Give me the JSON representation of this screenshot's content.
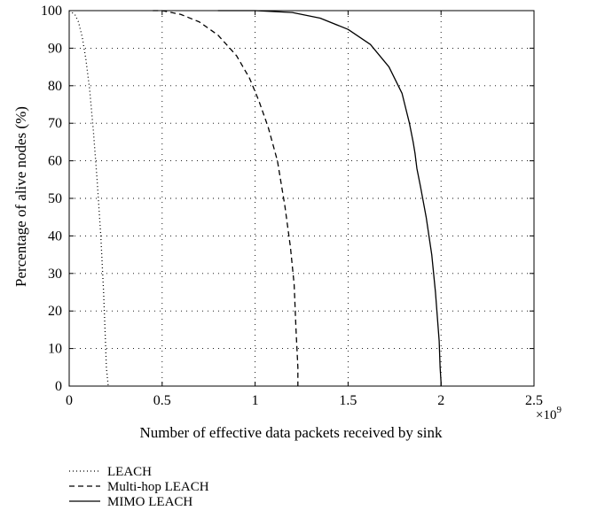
{
  "chart_data": {
    "type": "line",
    "title": "",
    "xlabel": "Number of effective data packets received by sink",
    "ylabel": "Percentage of alive nodes (%)",
    "x_scale_label": "×10",
    "x_scale_exponent": "9",
    "xlim": [
      0,
      2.5
    ],
    "ylim": [
      0,
      100
    ],
    "xticks": [
      0,
      0.5,
      1,
      1.5,
      2,
      2.5
    ],
    "xtick_labels": [
      "0",
      "0.5",
      "1",
      "1.5",
      "2",
      "2.5"
    ],
    "yticks": [
      0,
      10,
      20,
      30,
      40,
      50,
      60,
      70,
      80,
      90,
      100
    ],
    "ytick_labels": [
      "0",
      "10",
      "20",
      "30",
      "40",
      "50",
      "60",
      "70",
      "80",
      "90",
      "100"
    ],
    "grid": true,
    "legend_position": "below-left",
    "series": [
      {
        "name": "LEACH",
        "line_style": "dotted",
        "color": "#000000",
        "x": [
          0.0,
          0.03,
          0.05,
          0.07,
          0.09,
          0.11,
          0.13,
          0.15,
          0.17,
          0.185,
          0.195,
          0.2,
          0.21
        ],
        "y": [
          100,
          99,
          97,
          93,
          87,
          79,
          68,
          55,
          40,
          25,
          12,
          5,
          0
        ]
      },
      {
        "name": "Multi-hop LEACH",
        "line_style": "dashed",
        "color": "#000000",
        "x": [
          0.45,
          0.5,
          0.6,
          0.7,
          0.8,
          0.9,
          0.97,
          1.02,
          1.07,
          1.12,
          1.16,
          1.19,
          1.21,
          1.22,
          1.23,
          1.23
        ],
        "y": [
          100,
          100,
          99,
          97,
          93.5,
          88,
          82,
          76,
          69,
          60,
          48,
          37,
          27,
          15,
          5,
          0
        ]
      },
      {
        "name": "MIMO LEACH",
        "line_style": "solid",
        "color": "#000000",
        "x": [
          0.8,
          1.0,
          1.2,
          1.35,
          1.5,
          1.62,
          1.72,
          1.79,
          1.83,
          1.85,
          1.86,
          1.87,
          1.89,
          1.92,
          1.95,
          1.97,
          1.99,
          1.995,
          2.0,
          2.0
        ],
        "y": [
          100,
          100,
          99.5,
          98,
          95,
          91,
          85,
          78,
          70,
          65,
          62,
          58,
          53,
          45,
          35,
          25,
          12,
          5,
          1,
          0
        ]
      }
    ]
  }
}
